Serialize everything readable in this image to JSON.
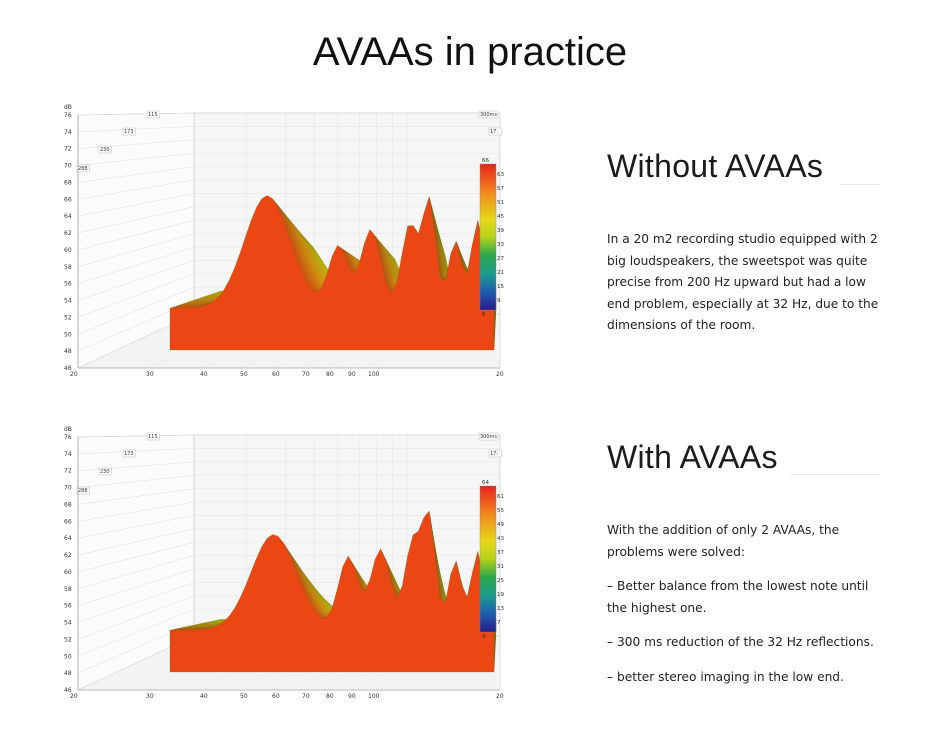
{
  "page": {
    "title": "AVAAs in practice"
  },
  "sections": [
    {
      "title": "Without AVAAs",
      "paragraphs": [
        "In a 20 m2 recording studio equipped with 2 big loudspeakers, the sweetspot was quite precise from 200 Hz upward but had a low end problem, especially at 32 Hz, due to the dimensions of the room."
      ]
    },
    {
      "title": "With AVAAs",
      "paragraphs": [
        "With the addition of only 2 AVAAs, the problems were solved:",
        "– Better balance from the lowest note until the highest one.",
        "– 300 ms reduction of the 32 Hz reflections.",
        "– better stereo imaging in the low end."
      ]
    }
  ],
  "plots": [
    {
      "y_unit": "dB",
      "y_ticks": [
        "76",
        "74",
        "72",
        "70",
        "68",
        "66",
        "64",
        "62",
        "60",
        "58",
        "56",
        "54",
        "52",
        "50",
        "48",
        "46"
      ],
      "x_ticks": [
        "20",
        "30",
        "40",
        "50",
        "60",
        "70",
        "80",
        "90",
        "100",
        "200Hz"
      ],
      "time_tags": [
        "115",
        "173",
        "230",
        "288",
        "300ms",
        "17:"
      ],
      "scale_ticks": [
        "66",
        "63",
        "57",
        "51",
        "45",
        "39",
        "33",
        "27",
        "21",
        "15",
        "9",
        "6"
      ]
    },
    {
      "y_unit": "dB",
      "y_ticks": [
        "76",
        "74",
        "72",
        "70",
        "68",
        "66",
        "64",
        "62",
        "60",
        "58",
        "56",
        "54",
        "52",
        "50",
        "48",
        "46"
      ],
      "x_ticks": [
        "20",
        "30",
        "40",
        "50",
        "60",
        "70",
        "80",
        "90",
        "100",
        "200Hz"
      ],
      "time_tags": [
        "115",
        "173",
        "230",
        "288",
        "300ms",
        "17:"
      ],
      "scale_ticks": [
        "64",
        "61",
        "55",
        "49",
        "43",
        "37",
        "31",
        "25",
        "19",
        "13",
        "7",
        "4"
      ]
    }
  ]
}
